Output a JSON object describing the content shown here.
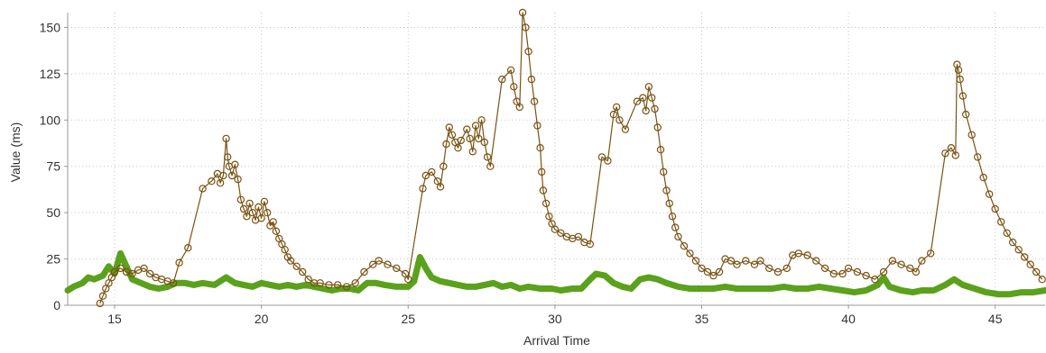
{
  "chart_data": {
    "type": "scatter",
    "title": "",
    "xlabel": "Arrival Time",
    "ylabel": "Value (ms)",
    "xlim": [
      13.4,
      46.7
    ],
    "ylim": [
      0,
      158
    ],
    "x_ticks": [
      15,
      20,
      25,
      30,
      35,
      40,
      45
    ],
    "y_ticks": [
      0,
      25,
      50,
      75,
      100,
      125,
      150
    ],
    "grid": true,
    "legend": "none",
    "colors": {
      "brown": "#7a5211",
      "green": "#5aa11c"
    },
    "series": [
      {
        "color": "#7a5211",
        "style": "line+open-circles",
        "points": [
          [
            14.5,
            1
          ],
          [
            14.6,
            5
          ],
          [
            14.7,
            9
          ],
          [
            14.8,
            12
          ],
          [
            14.9,
            15
          ],
          [
            15.0,
            18
          ],
          [
            15.2,
            20
          ],
          [
            15.4,
            18
          ],
          [
            15.6,
            17
          ],
          [
            15.8,
            19
          ],
          [
            16.0,
            20
          ],
          [
            16.2,
            17
          ],
          [
            16.4,
            15
          ],
          [
            16.6,
            14
          ],
          [
            16.8,
            13
          ],
          [
            17.0,
            12
          ],
          [
            17.2,
            23
          ],
          [
            17.5,
            31
          ],
          [
            18.0,
            63
          ],
          [
            18.3,
            67
          ],
          [
            18.5,
            71
          ],
          [
            18.6,
            66
          ],
          [
            18.7,
            70
          ],
          [
            18.8,
            90
          ],
          [
            18.85,
            80
          ],
          [
            18.9,
            75
          ],
          [
            19.0,
            70
          ],
          [
            19.1,
            76
          ],
          [
            19.2,
            68
          ],
          [
            19.3,
            57
          ],
          [
            19.4,
            52
          ],
          [
            19.5,
            48
          ],
          [
            19.6,
            55
          ],
          [
            19.7,
            50
          ],
          [
            19.8,
            46
          ],
          [
            19.9,
            53
          ],
          [
            20.0,
            47
          ],
          [
            20.1,
            56
          ],
          [
            20.2,
            50
          ],
          [
            20.3,
            43
          ],
          [
            20.4,
            45
          ],
          [
            20.5,
            40
          ],
          [
            20.6,
            36
          ],
          [
            20.7,
            33
          ],
          [
            20.8,
            30
          ],
          [
            20.9,
            26
          ],
          [
            21.0,
            24
          ],
          [
            21.2,
            21
          ],
          [
            21.4,
            18
          ],
          [
            21.6,
            14
          ],
          [
            21.8,
            12
          ],
          [
            22.0,
            12
          ],
          [
            22.3,
            11
          ],
          [
            22.6,
            11
          ],
          [
            22.9,
            10
          ],
          [
            23.2,
            12
          ],
          [
            23.5,
            18
          ],
          [
            23.8,
            22
          ],
          [
            24.0,
            24
          ],
          [
            24.3,
            22
          ],
          [
            24.6,
            20
          ],
          [
            24.9,
            17
          ],
          [
            25.0,
            14
          ],
          [
            25.5,
            63
          ],
          [
            25.6,
            70
          ],
          [
            25.8,
            72
          ],
          [
            26.0,
            67
          ],
          [
            26.1,
            64
          ],
          [
            26.2,
            75
          ],
          [
            26.3,
            87
          ],
          [
            26.4,
            96
          ],
          [
            26.5,
            92
          ],
          [
            26.6,
            88
          ],
          [
            26.7,
            85
          ],
          [
            26.8,
            89
          ],
          [
            27.0,
            95
          ],
          [
            27.1,
            90
          ],
          [
            27.2,
            83
          ],
          [
            27.3,
            97
          ],
          [
            27.4,
            90
          ],
          [
            27.5,
            100
          ],
          [
            27.6,
            88
          ],
          [
            27.7,
            80
          ],
          [
            27.8,
            75
          ],
          [
            28.2,
            122
          ],
          [
            28.5,
            127
          ],
          [
            28.6,
            118
          ],
          [
            28.7,
            110
          ],
          [
            28.8,
            107
          ],
          [
            28.9,
            158
          ],
          [
            29.0,
            150
          ],
          [
            29.1,
            137
          ],
          [
            29.2,
            122
          ],
          [
            29.3,
            110
          ],
          [
            29.4,
            97
          ],
          [
            29.5,
            85
          ],
          [
            29.55,
            72
          ],
          [
            29.6,
            62
          ],
          [
            29.7,
            55
          ],
          [
            29.8,
            48
          ],
          [
            29.9,
            44
          ],
          [
            30.0,
            41
          ],
          [
            30.2,
            39
          ],
          [
            30.4,
            37
          ],
          [
            30.6,
            36
          ],
          [
            30.8,
            37
          ],
          [
            31.0,
            34
          ],
          [
            31.2,
            33
          ],
          [
            31.6,
            80
          ],
          [
            31.8,
            78
          ],
          [
            32.0,
            103
          ],
          [
            32.1,
            107
          ],
          [
            32.2,
            100
          ],
          [
            32.4,
            95
          ],
          [
            32.8,
            110
          ],
          [
            33.0,
            112
          ],
          [
            33.1,
            105
          ],
          [
            33.2,
            118
          ],
          [
            33.3,
            112
          ],
          [
            33.4,
            106
          ],
          [
            33.5,
            96
          ],
          [
            33.6,
            84
          ],
          [
            33.7,
            72
          ],
          [
            33.8,
            62
          ],
          [
            33.9,
            55
          ],
          [
            34.0,
            48
          ],
          [
            34.1,
            42
          ],
          [
            34.2,
            37
          ],
          [
            34.4,
            32
          ],
          [
            34.6,
            28
          ],
          [
            34.8,
            24
          ],
          [
            35.0,
            20
          ],
          [
            35.2,
            18
          ],
          [
            35.4,
            16
          ],
          [
            35.6,
            18
          ],
          [
            35.8,
            25
          ],
          [
            36.0,
            24
          ],
          [
            36.2,
            22
          ],
          [
            36.5,
            24
          ],
          [
            36.8,
            22
          ],
          [
            37.0,
            24
          ],
          [
            37.3,
            20
          ],
          [
            37.6,
            18
          ],
          [
            37.9,
            20
          ],
          [
            38.1,
            27
          ],
          [
            38.3,
            28
          ],
          [
            38.6,
            27
          ],
          [
            38.9,
            24
          ],
          [
            39.2,
            20
          ],
          [
            39.5,
            17
          ],
          [
            39.8,
            17
          ],
          [
            40.0,
            20
          ],
          [
            40.3,
            18
          ],
          [
            40.6,
            16
          ],
          [
            40.9,
            14
          ],
          [
            41.2,
            18
          ],
          [
            41.5,
            24
          ],
          [
            41.8,
            22
          ],
          [
            42.1,
            20
          ],
          [
            42.3,
            18
          ],
          [
            42.5,
            24
          ],
          [
            42.8,
            28
          ],
          [
            43.3,
            82
          ],
          [
            43.5,
            85
          ],
          [
            43.65,
            81
          ],
          [
            43.7,
            130
          ],
          [
            43.75,
            127
          ],
          [
            43.8,
            122
          ],
          [
            43.9,
            113
          ],
          [
            44.0,
            103
          ],
          [
            44.2,
            92
          ],
          [
            44.4,
            80
          ],
          [
            44.6,
            69
          ],
          [
            44.8,
            60
          ],
          [
            45.0,
            52
          ],
          [
            45.2,
            45
          ],
          [
            45.4,
            39
          ],
          [
            45.6,
            34
          ],
          [
            45.8,
            30
          ],
          [
            46.0,
            26
          ],
          [
            46.2,
            22
          ],
          [
            46.4,
            18
          ],
          [
            46.6,
            14
          ]
        ]
      },
      {
        "color": "#5aa11c",
        "style": "thick-line",
        "points": [
          [
            13.4,
            8
          ],
          [
            13.6,
            10
          ],
          [
            13.9,
            12
          ],
          [
            14.1,
            15
          ],
          [
            14.3,
            14
          ],
          [
            14.6,
            16
          ],
          [
            14.8,
            21
          ],
          [
            15.0,
            17
          ],
          [
            15.2,
            28
          ],
          [
            15.4,
            21
          ],
          [
            15.6,
            14
          ],
          [
            15.9,
            12
          ],
          [
            16.2,
            10
          ],
          [
            16.5,
            9
          ],
          [
            16.8,
            10
          ],
          [
            17.1,
            12
          ],
          [
            17.4,
            12
          ],
          [
            17.7,
            11
          ],
          [
            18.0,
            12
          ],
          [
            18.4,
            11
          ],
          [
            18.8,
            15
          ],
          [
            19.1,
            12
          ],
          [
            19.4,
            11
          ],
          [
            19.7,
            10
          ],
          [
            20.0,
            12
          ],
          [
            20.3,
            11
          ],
          [
            20.6,
            10
          ],
          [
            20.9,
            11
          ],
          [
            21.2,
            10
          ],
          [
            21.5,
            11
          ],
          [
            21.8,
            10
          ],
          [
            22.1,
            9
          ],
          [
            22.4,
            8
          ],
          [
            22.7,
            9
          ],
          [
            23.0,
            9
          ],
          [
            23.3,
            8
          ],
          [
            23.6,
            12
          ],
          [
            23.9,
            12
          ],
          [
            24.2,
            11
          ],
          [
            24.6,
            10
          ],
          [
            25.0,
            10
          ],
          [
            25.2,
            13
          ],
          [
            25.4,
            26
          ],
          [
            25.6,
            20
          ],
          [
            25.8,
            15
          ],
          [
            26.1,
            13
          ],
          [
            26.4,
            12
          ],
          [
            26.7,
            11
          ],
          [
            27.0,
            10
          ],
          [
            27.3,
            10
          ],
          [
            27.6,
            11
          ],
          [
            27.9,
            12
          ],
          [
            28.2,
            10
          ],
          [
            28.5,
            11
          ],
          [
            28.8,
            9
          ],
          [
            29.1,
            10
          ],
          [
            29.5,
            9
          ],
          [
            29.9,
            9
          ],
          [
            30.2,
            8
          ],
          [
            30.6,
            9
          ],
          [
            30.9,
            9
          ],
          [
            31.2,
            14
          ],
          [
            31.4,
            17
          ],
          [
            31.7,
            16
          ],
          [
            32.0,
            12
          ],
          [
            32.3,
            10
          ],
          [
            32.6,
            9
          ],
          [
            32.9,
            14
          ],
          [
            33.2,
            15
          ],
          [
            33.5,
            14
          ],
          [
            33.8,
            12
          ],
          [
            34.2,
            10
          ],
          [
            34.6,
            9
          ],
          [
            35.0,
            9
          ],
          [
            35.4,
            9
          ],
          [
            35.8,
            10
          ],
          [
            36.2,
            9
          ],
          [
            36.6,
            9
          ],
          [
            37.0,
            9
          ],
          [
            37.4,
            9
          ],
          [
            37.8,
            10
          ],
          [
            38.2,
            9
          ],
          [
            38.6,
            9
          ],
          [
            39.0,
            10
          ],
          [
            39.4,
            9
          ],
          [
            39.8,
            8
          ],
          [
            40.2,
            7
          ],
          [
            40.6,
            8
          ],
          [
            41.0,
            11
          ],
          [
            41.2,
            15
          ],
          [
            41.4,
            10
          ],
          [
            41.8,
            8
          ],
          [
            42.2,
            7
          ],
          [
            42.5,
            8
          ],
          [
            42.9,
            8
          ],
          [
            43.3,
            11
          ],
          [
            43.6,
            14
          ],
          [
            43.9,
            11
          ],
          [
            44.3,
            9
          ],
          [
            44.7,
            7
          ],
          [
            45.1,
            6
          ],
          [
            45.5,
            6
          ],
          [
            45.9,
            7
          ],
          [
            46.3,
            7
          ],
          [
            46.7,
            8
          ]
        ]
      }
    ]
  }
}
